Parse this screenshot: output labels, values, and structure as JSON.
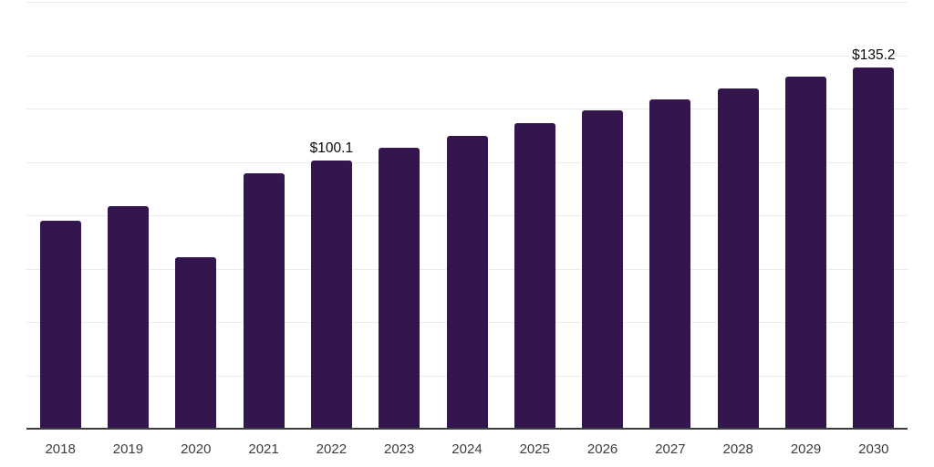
{
  "chart_data": {
    "type": "bar",
    "title": "",
    "xlabel": "",
    "ylabel": "",
    "categories": [
      "2018",
      "2019",
      "2020",
      "2021",
      "2022",
      "2023",
      "2024",
      "2025",
      "2026",
      "2027",
      "2028",
      "2029",
      "2030"
    ],
    "values": [
      77.6,
      83.0,
      64.0,
      95.4,
      100.1,
      105.0,
      109.5,
      114.3,
      118.9,
      123.0,
      127.3,
      131.6,
      135.2
    ],
    "point_labels": [
      "",
      "",
      "",
      "",
      "$100.1",
      "",
      "",
      "",
      "",
      "",
      "",
      "",
      "$135.2"
    ],
    "ylim": [
      0,
      160
    ],
    "grid_step": 20,
    "grid_on": true,
    "legend_position": "none",
    "colors": {
      "bar": "#34164f",
      "gridline": "#ececec",
      "axis_line": "#3d3d3d",
      "tick_label": "#3c3c3c",
      "value_label": "#0a0a0a",
      "background": "#ffffff"
    }
  }
}
